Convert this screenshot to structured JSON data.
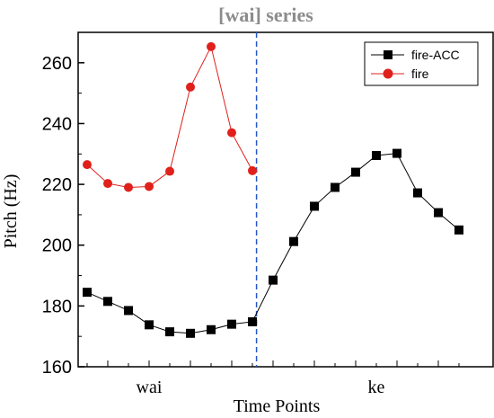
{
  "chart_data": {
    "type": "line",
    "title": "[wai] series",
    "xlabel": "Time Points",
    "ylabel": "Pitch (Hz)",
    "ylim": [
      160,
      270
    ],
    "yticks": [
      160,
      180,
      200,
      220,
      240,
      260
    ],
    "xlim": [
      0,
      19
    ],
    "categories": [
      {
        "label": "wai",
        "x": 4
      },
      {
        "label": "ke",
        "x": 15
      }
    ],
    "boundary_x": 9.2,
    "legend_position": "top-right",
    "grid": false,
    "series": [
      {
        "name": "fire-ACC",
        "color": "#000000",
        "marker": "square",
        "x": [
          1,
          2,
          3,
          4,
          5,
          6,
          7,
          8,
          9,
          10,
          11,
          12,
          13,
          14,
          15,
          16,
          17,
          18,
          19
        ],
        "values": [
          184.5,
          181.5,
          178.5,
          173.8,
          171.5,
          171.0,
          172.2,
          174.0,
          174.8,
          188.5,
          201.2,
          212.8,
          219.0,
          224.0,
          229.5,
          230.2,
          217.2,
          210.7,
          205.0
        ]
      },
      {
        "name": "fire",
        "color": "#e0201b",
        "marker": "circle",
        "x": [
          1,
          2,
          3,
          4,
          5,
          6,
          7,
          8,
          9
        ],
        "values": [
          226.5,
          220.3,
          219.0,
          219.3,
          224.3,
          252.0,
          265.3,
          237.0,
          224.5
        ]
      }
    ]
  }
}
